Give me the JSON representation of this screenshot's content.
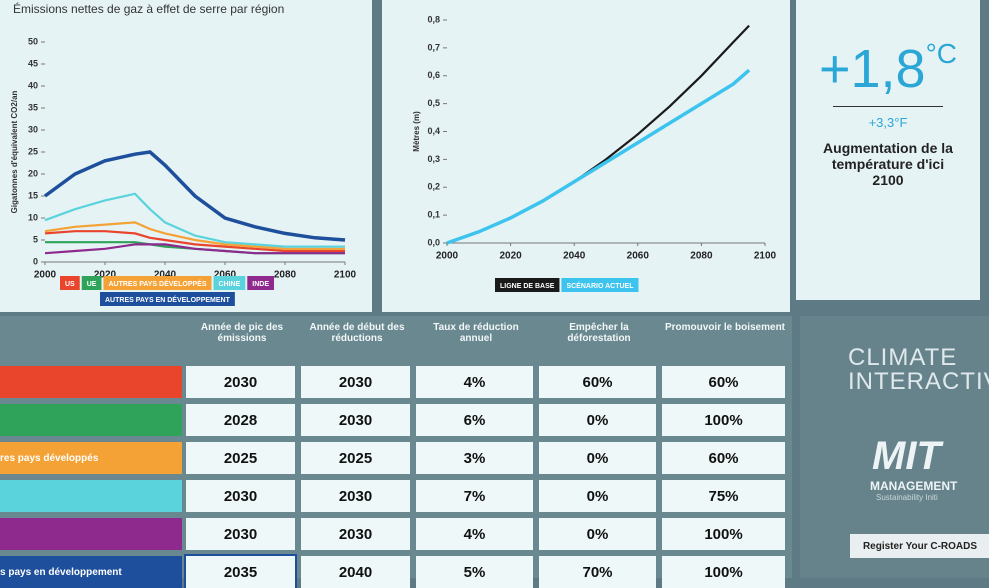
{
  "chart_data": [
    {
      "type": "line",
      "title": "Émissions nettes de gaz à effet de serre par région",
      "ylabel": "Gigatonnes d'équivalent CO2/an",
      "x": [
        2000,
        2010,
        2020,
        2030,
        2035,
        2040,
        2050,
        2060,
        2070,
        2080,
        2090,
        2100
      ],
      "xlim": [
        2000,
        2100
      ],
      "xticks": [
        2000,
        2020,
        2040,
        2060,
        2080,
        2100
      ],
      "ylim": [
        0,
        50
      ],
      "yticks": [
        0,
        5,
        10,
        15,
        20,
        25,
        30,
        35,
        40,
        45,
        50
      ],
      "series": [
        {
          "name": "US",
          "color": "#e8452c",
          "values": [
            6.5,
            7,
            7,
            6.5,
            5.5,
            5,
            4,
            3.5,
            3,
            2.5,
            2.5,
            2.5
          ]
        },
        {
          "name": "UE",
          "color": "#2fa35a",
          "values": [
            4.5,
            4.5,
            4.5,
            4.5,
            4,
            3.5,
            3,
            2.5,
            2,
            2,
            2,
            2
          ]
        },
        {
          "name": "AUTRES PAYS DÉVELOPPÉS",
          "color": "#f4a236",
          "values": [
            7,
            8,
            8.5,
            9,
            7.5,
            6.5,
            5,
            4,
            3.5,
            3,
            3,
            3
          ]
        },
        {
          "name": "CHINE",
          "color": "#5ad3dc",
          "values": [
            9.5,
            12,
            14,
            15.5,
            12,
            9,
            6,
            4.5,
            4,
            3.5,
            3.5,
            3.5
          ]
        },
        {
          "name": "INDE",
          "color": "#8e2a8e",
          "values": [
            2,
            2.5,
            3,
            4,
            4,
            4,
            3,
            2.5,
            2,
            2,
            2,
            2
          ]
        },
        {
          "name": "AUTRES PAYS EN DÉVELOPPEMENT",
          "color": "#1d4f9c",
          "values": [
            15,
            20,
            23,
            24.5,
            25,
            22,
            15,
            10,
            8,
            6.5,
            5.5,
            5
          ]
        }
      ]
    },
    {
      "type": "line",
      "ylabel": "Mètres (m)",
      "x": [
        2000,
        2010,
        2020,
        2030,
        2040,
        2050,
        2060,
        2070,
        2080,
        2090,
        2095
      ],
      "xlim": [
        2000,
        2100
      ],
      "xticks": [
        2000,
        2020,
        2040,
        2060,
        2080,
        2100
      ],
      "ylim": [
        0,
        0.8
      ],
      "yticks": [
        {
          "value": 0,
          "label": "0,0"
        },
        {
          "value": 0.1,
          "label": "0,1"
        },
        {
          "value": 0.2,
          "label": "0,2"
        },
        {
          "value": 0.3,
          "label": "0,3"
        },
        {
          "value": 0.4,
          "label": "0,4"
        },
        {
          "value": 0.5,
          "label": "0,5"
        },
        {
          "value": 0.6,
          "label": "0,6"
        },
        {
          "value": 0.7,
          "label": "0,7"
        },
        {
          "value": 0.8,
          "label": "0,8"
        }
      ],
      "series": [
        {
          "name": "LIGNE DE BASE",
          "color": "#1a1a1a",
          "values": [
            0,
            0.04,
            0.09,
            0.15,
            0.22,
            0.3,
            0.39,
            0.49,
            0.6,
            0.72,
            0.78
          ]
        },
        {
          "name": "SCÉNARIO ACTUEL",
          "color": "#3cc3ee",
          "values": [
            0,
            0.04,
            0.09,
            0.15,
            0.22,
            0.29,
            0.36,
            0.43,
            0.5,
            0.57,
            0.62
          ]
        }
      ]
    }
  ],
  "temperature": {
    "celsius": "+1,8",
    "unit": "°C",
    "fahrenheit": "+3,3°F",
    "caption": "Augmentation de la température d'ici 2100"
  },
  "table": {
    "headers": [
      "Année de pic des émissions",
      "Année de début des réductions",
      "Taux de réduction annuel",
      "Empêcher la déforestation",
      "Promouvoir le boisement"
    ],
    "rows": [
      {
        "color": "#e8452c",
        "cells": [
          "2030",
          "2030",
          "4%",
          "60%",
          "60%"
        ]
      },
      {
        "color": "#2fa35a",
        "cells": [
          "2028",
          "2030",
          "6%",
          "0%",
          "100%"
        ]
      },
      {
        "color": "#f4a236",
        "label": "res pays développés",
        "cells": [
          "2025",
          "2025",
          "3%",
          "0%",
          "60%"
        ]
      },
      {
        "color": "#5ad3dc",
        "cells": [
          "2030",
          "2030",
          "7%",
          "0%",
          "75%"
        ]
      },
      {
        "color": "#8e2a8e",
        "cells": [
          "2030",
          "2030",
          "4%",
          "0%",
          "100%"
        ]
      },
      {
        "color": "#1d4f9c",
        "label": "s pays en développement",
        "cells": [
          "2035",
          "2040",
          "5%",
          "70%",
          "100%"
        ]
      }
    ]
  },
  "sidebar": {
    "logo1": [
      "CLIMATE",
      "INTERACTIV"
    ],
    "logo2": "MIT",
    "logo2_sub": "MANAGEMENT",
    "logo2_note": "Sustainability Initi",
    "button": "Register Your C-ROADS"
  }
}
